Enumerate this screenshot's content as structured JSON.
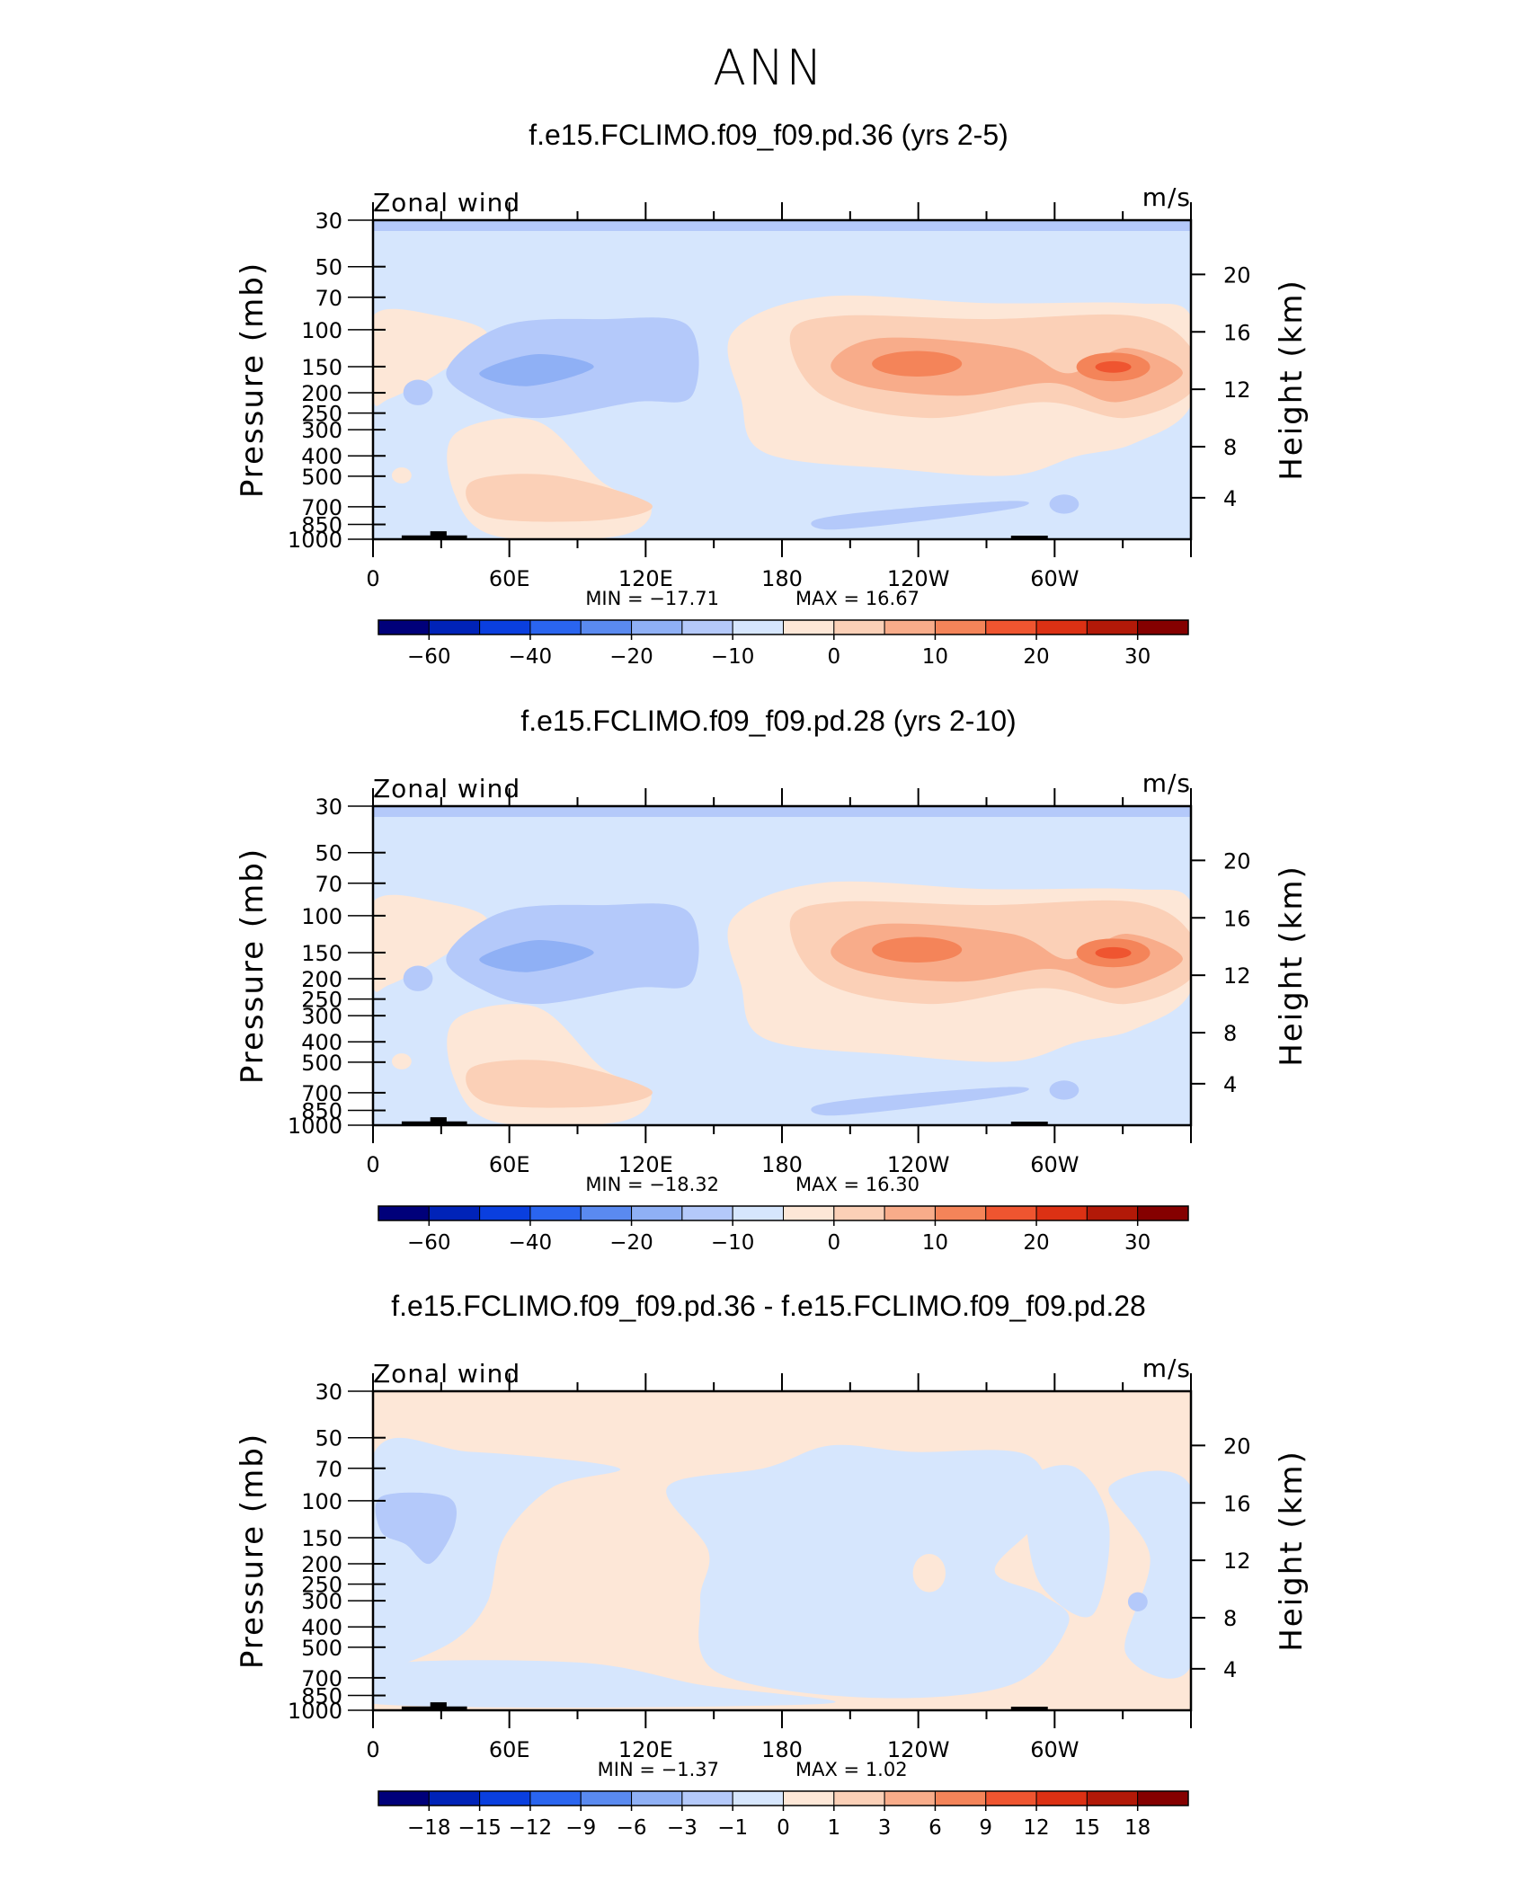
{
  "figure": {
    "title": "ANN"
  },
  "chart_data": [
    {
      "type": "heatmap",
      "title": "f.e15.FCLIMO.f09_f09.pd.36 (yrs 2-5)",
      "left_label": "Zonal wind",
      "right_label": "m/s",
      "ylabel": "Pressure  (mb)",
      "ylabel_right": "Height  (km)",
      "x_ticks": [
        "0",
        "60E",
        "120E",
        "180",
        "120W",
        "60W"
      ],
      "x_range_deg": [
        0,
        360
      ],
      "y_ticks": [
        "30",
        "50",
        "70",
        "100",
        "150",
        "200",
        "250",
        "300",
        "400",
        "500",
        "700",
        "850",
        "1000"
      ],
      "y_values": [
        30,
        50,
        70,
        100,
        150,
        200,
        250,
        300,
        400,
        500,
        700,
        850,
        1000
      ],
      "y_ticks_right": [
        "20",
        "16",
        "12",
        "8",
        "4"
      ],
      "min_text": "MIN  =   −17.71",
      "max_text": "MAX  =    16.67",
      "colorbar_labels": [
        "−60",
        "−40",
        "−20",
        "−10",
        "0",
        "10",
        "20",
        "30"
      ],
      "colorbar_label_positions": [
        1,
        3,
        5,
        7,
        9,
        11,
        13,
        15
      ],
      "data_min": -17.71,
      "data_max": 16.67
    },
    {
      "type": "heatmap",
      "title": "f.e15.FCLIMO.f09_f09.pd.28 (yrs 2-10)",
      "left_label": "Zonal wind",
      "right_label": "m/s",
      "ylabel": "Pressure  (mb)",
      "ylabel_right": "Height  (km)",
      "x_ticks": [
        "0",
        "60E",
        "120E",
        "180",
        "120W",
        "60W"
      ],
      "x_range_deg": [
        0,
        360
      ],
      "y_ticks": [
        "30",
        "50",
        "70",
        "100",
        "150",
        "200",
        "250",
        "300",
        "400",
        "500",
        "700",
        "850",
        "1000"
      ],
      "y_values": [
        30,
        50,
        70,
        100,
        150,
        200,
        250,
        300,
        400,
        500,
        700,
        850,
        1000
      ],
      "y_ticks_right": [
        "20",
        "16",
        "12",
        "8",
        "4"
      ],
      "min_text": "MIN  =   −18.32",
      "max_text": "MAX  =    16.30",
      "colorbar_labels": [
        "−60",
        "−40",
        "−20",
        "−10",
        "0",
        "10",
        "20",
        "30"
      ],
      "colorbar_label_positions": [
        1,
        3,
        5,
        7,
        9,
        11,
        13,
        15
      ],
      "data_min": -18.32,
      "data_max": 16.3
    },
    {
      "type": "heatmap",
      "title": "f.e15.FCLIMO.f09_f09.pd.36 - f.e15.FCLIMO.f09_f09.pd.28",
      "left_label": "Zonal wind",
      "right_label": "m/s",
      "ylabel": "Pressure  (mb)",
      "ylabel_right": "Height  (km)",
      "x_ticks": [
        "0",
        "60E",
        "120E",
        "180",
        "120W",
        "60W"
      ],
      "x_range_deg": [
        0,
        360
      ],
      "y_ticks": [
        "30",
        "50",
        "70",
        "100",
        "150",
        "200",
        "250",
        "300",
        "400",
        "500",
        "700",
        "850",
        "1000"
      ],
      "y_values": [
        30,
        50,
        70,
        100,
        150,
        200,
        250,
        300,
        400,
        500,
        700,
        850,
        1000
      ],
      "y_ticks_right": [
        "20",
        "16",
        "12",
        "8",
        "4"
      ],
      "min_text": "MIN  =    −1.37",
      "max_text": "MAX  =    1.02",
      "colorbar_labels": [
        "−18",
        "−15",
        "−12",
        "−9",
        "−6",
        "−3",
        "−1",
        "0",
        "1",
        "3",
        "6",
        "9",
        "12",
        "15",
        "18"
      ],
      "colorbar_label_positions": [
        1,
        2,
        3,
        4,
        5,
        6,
        7,
        8,
        9,
        10,
        11,
        12,
        13,
        14,
        15
      ],
      "data_min": -1.37,
      "data_max": 1.02
    }
  ],
  "colorbar_colors": [
    "#00007a",
    "#0023b8",
    "#0a3fdf",
    "#2a65ef",
    "#5a8af0",
    "#8fb0f5",
    "#b4c9fa",
    "#d6e6fd",
    "#fde7d7",
    "#fbd0b7",
    "#f8ac8a",
    "#f48459",
    "#ef5530",
    "#dc3114",
    "#b21908",
    "#850000"
  ]
}
